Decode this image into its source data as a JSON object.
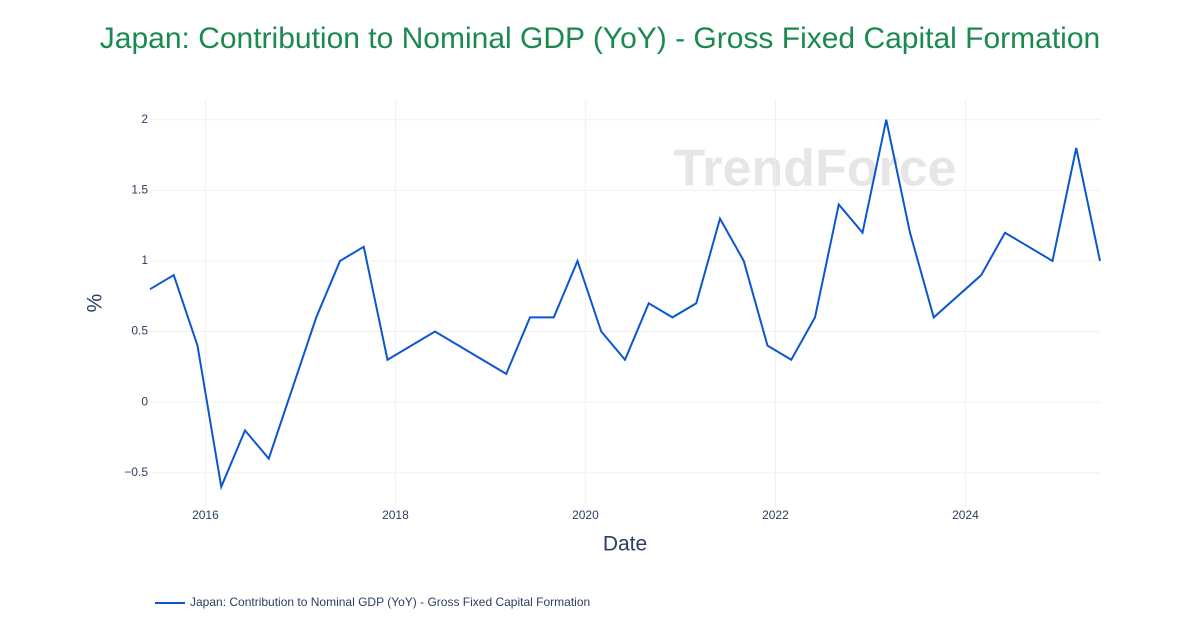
{
  "chart_data": {
    "type": "line",
    "title": "Japan: Contribution to Nominal GDP (YoY) - Gross Fixed Capital Formation",
    "watermark": "TrendForce",
    "x_label": "Date",
    "y_label": "%",
    "x": [
      "2015-06",
      "2015-09",
      "2015-12",
      "2016-03",
      "2016-06",
      "2016-09",
      "2017-03",
      "2017-06",
      "2017-09",
      "2017-12",
      "2018-06",
      "2019-03",
      "2019-06",
      "2019-09",
      "2019-12",
      "2020-03",
      "2020-06",
      "2020-09",
      "2020-12",
      "2021-03",
      "2021-06",
      "2021-09",
      "2021-12",
      "2022-03",
      "2022-06",
      "2022-09",
      "2022-12",
      "2023-03",
      "2023-06",
      "2023-09",
      "2024-03",
      "2024-06",
      "2024-12",
      "2025-03",
      "2025-06"
    ],
    "series": [
      {
        "name": "Japan: Contribution to Nominal GDP (YoY) - Gross Fixed Capital Formation",
        "color": "#0b57d0",
        "values": [
          0.8,
          0.9,
          0.4,
          -0.6,
          -0.2,
          -0.4,
          0.6,
          1.0,
          1.1,
          0.3,
          0.5,
          0.2,
          0.6,
          0.6,
          1.0,
          0.5,
          0.3,
          0.7,
          0.6,
          0.7,
          1.3,
          1.0,
          0.4,
          0.3,
          0.6,
          1.4,
          1.2,
          2.0,
          1.2,
          0.6,
          0.9,
          1.2,
          1.0,
          1.8,
          1.0
        ]
      }
    ],
    "xlim": [
      "2015-06",
      "2025-06"
    ],
    "xticks": [
      "2016",
      "2018",
      "2020",
      "2022",
      "2024"
    ],
    "ylim": [
      -0.75,
      2.14
    ],
    "yticks": [
      {
        "value": -0.5,
        "label": "−0.5"
      },
      0,
      0.5,
      1,
      1.5,
      2
    ],
    "grid": true,
    "legend": "bottom-left"
  }
}
